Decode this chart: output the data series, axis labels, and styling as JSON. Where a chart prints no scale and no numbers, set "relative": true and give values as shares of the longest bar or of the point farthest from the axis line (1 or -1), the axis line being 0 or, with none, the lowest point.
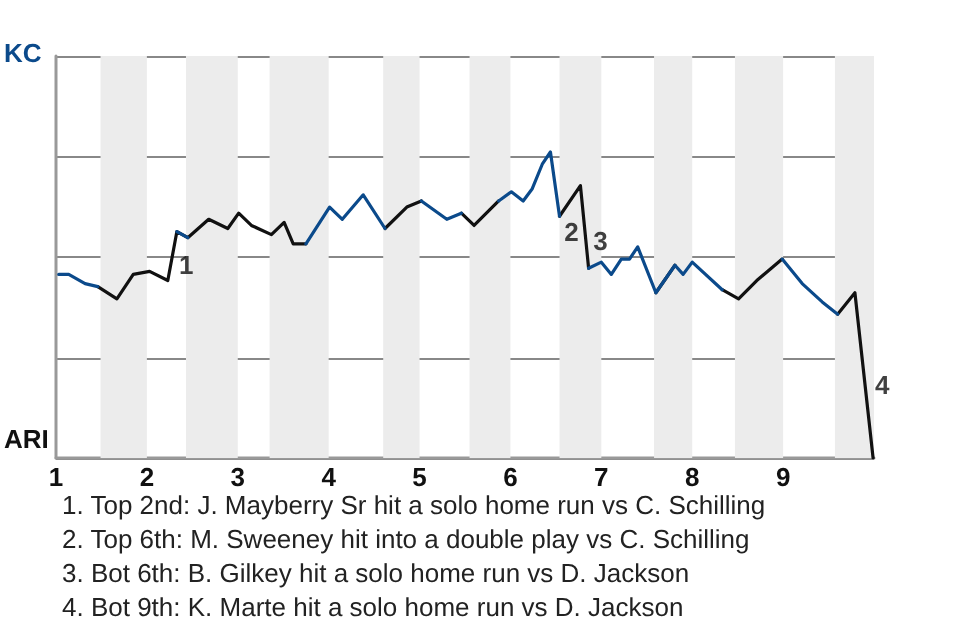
{
  "chart_data": {
    "type": "line",
    "relative": true,
    "grid": "y",
    "marker": "none",
    "line_style": "solid",
    "x": [
      1.03,
      1.14,
      1.32,
      1.46,
      1.67,
      1.85,
      2.03,
      2.23,
      2.33,
      2.45,
      2.68,
      2.89,
      3.01,
      3.15,
      3.37,
      3.51,
      3.61,
      3.75,
      4.01,
      4.15,
      4.38,
      4.62,
      4.86,
      5.02,
      5.3,
      5.46,
      5.6,
      5.87,
      6.01,
      6.14,
      6.24,
      6.35,
      6.44,
      6.54,
      6.77,
      6.86,
      7.0,
      7.11,
      7.22,
      7.31,
      7.4,
      7.6,
      7.81,
      7.9,
      8.0,
      8.33,
      8.51,
      8.71,
      8.99,
      9.21,
      9.43,
      9.6,
      9.79,
      9.99
    ],
    "series": [
      {
        "color": "#0b4a8b",
        "values": [
          0.6,
          0.6,
          0.57,
          0.56,
          null,
          null,
          null,
          null,
          0.74,
          0.72,
          null,
          null,
          null,
          null,
          null,
          null,
          null,
          0.7,
          0.82,
          0.78,
          0.86,
          0.75,
          null,
          0.84,
          0.78,
          0.8,
          null,
          0.84,
          0.87,
          0.84,
          0.88,
          0.96,
          1.0,
          0.79,
          null,
          0.62,
          0.64,
          0.6,
          0.65,
          0.65,
          0.69,
          0.54,
          0.63,
          0.6,
          0.64,
          0.55,
          null,
          null,
          0.65,
          0.57,
          0.51,
          0.47,
          null,
          null
        ]
      },
      {
        "color": "#111111",
        "values": [
          null,
          null,
          null,
          0.56,
          0.52,
          0.6,
          0.61,
          0.58,
          0.74,
          0.72,
          0.78,
          0.75,
          0.8,
          0.76,
          0.73,
          0.77,
          0.7,
          0.7,
          null,
          null,
          null,
          0.75,
          0.82,
          0.84,
          null,
          0.8,
          0.76,
          0.84,
          null,
          null,
          null,
          null,
          null,
          0.79,
          0.89,
          0.62,
          null,
          null,
          null,
          null,
          null,
          0.54,
          0.63,
          null,
          null,
          0.55,
          0.52,
          0.58,
          0.65,
          null,
          null,
          0.47,
          0.54,
          0
        ]
      }
    ],
    "xlim": [
      1,
      10
    ],
    "xticks": [
      1,
      2,
      3,
      4,
      5,
      6,
      7,
      8,
      9
    ],
    "bands": [
      {
        "axis": "x",
        "from": 1.49,
        "to": 2,
        "color": "#ececec"
      },
      {
        "axis": "x",
        "from": 2.43,
        "to": 3,
        "color": "#ececec"
      },
      {
        "axis": "x",
        "from": 3.35,
        "to": 4,
        "color": "#ececec"
      },
      {
        "axis": "x",
        "from": 4.6,
        "to": 5,
        "color": "#ececec"
      },
      {
        "axis": "x",
        "from": 5.55,
        "to": 6,
        "color": "#ececec"
      },
      {
        "axis": "x",
        "from": 6.54,
        "to": 7,
        "color": "#ececec"
      },
      {
        "axis": "x",
        "from": 7.58,
        "to": 8,
        "color": "#ececec"
      },
      {
        "axis": "x",
        "from": 8.47,
        "to": 9,
        "color": "#ececec"
      },
      {
        "axis": "x",
        "from": 9.57,
        "to": 10,
        "color": "#ececec"
      }
    ],
    "annotations": [
      "KC",
      "ARI",
      {
        "text": "1",
        "x": 2.33,
        "y": 0.63
      },
      {
        "text": "2",
        "x": 6.57,
        "y": 0.74
      },
      {
        "text": "3",
        "x": 6.89,
        "y": 0.71
      },
      {
        "text": "4",
        "x": 9.99,
        "y": 0.24
      },
      "1. Top 2nd: J. Mayberry Sr hit a solo home run vs C. Schilling",
      "2. Top 6th: M. Sweeney hit into a double play vs C. Schilling",
      "3. Bot 6th: B. Gilkey hit a solo home run vs D. Jackson",
      "4. Bot 9th: K. Marte hit a solo home run vs D. Jackson"
    ]
  }
}
